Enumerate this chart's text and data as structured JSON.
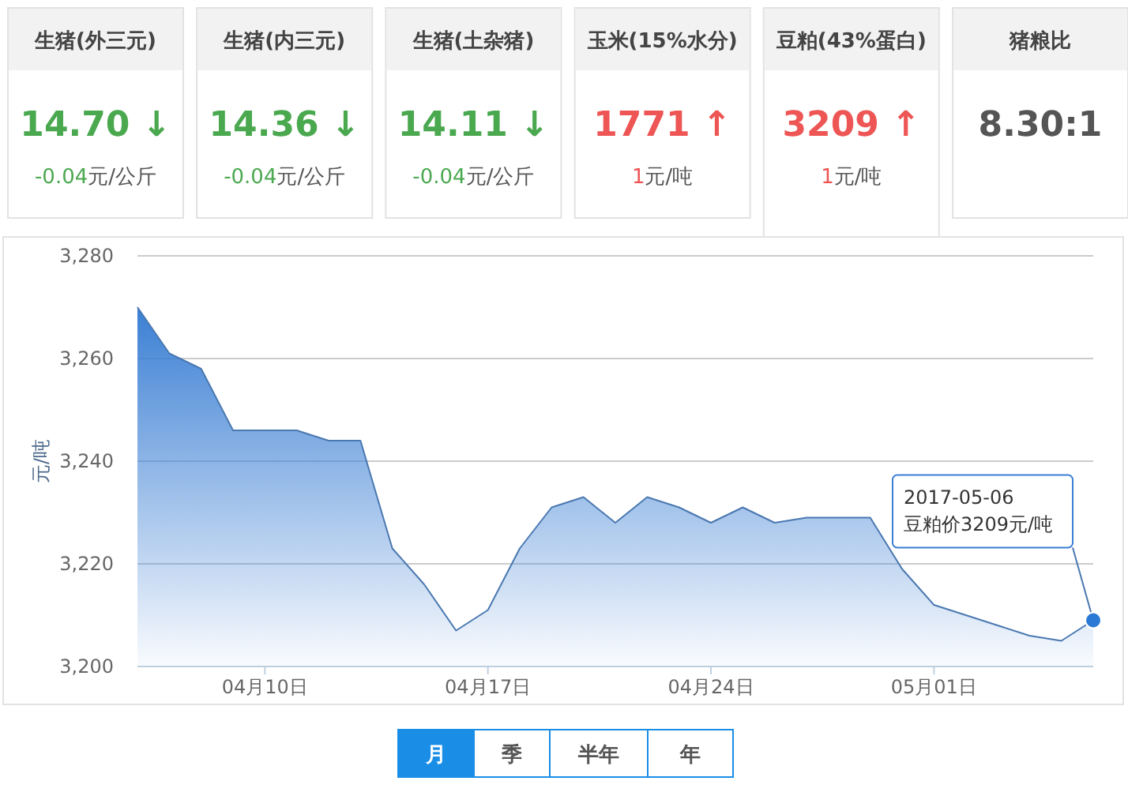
{
  "chart_data": [
    {
      "type": "other",
      "title": "生猪(外三元)",
      "annotations": [
        "14.70 ↓",
        "-0.04",
        "元/公斤"
      ],
      "colors": [
        "#4aa84f"
      ]
    },
    {
      "type": "other",
      "title": "生猪(内三元)",
      "annotations": [
        "14.36 ↓",
        "-0.04",
        "元/公斤"
      ],
      "colors": [
        "#4aa84f"
      ]
    },
    {
      "type": "other",
      "title": "生猪(土杂猪)",
      "annotations": [
        "14.11 ↓",
        "-0.04",
        "元/公斤"
      ],
      "colors": [
        "#4aa84f"
      ]
    },
    {
      "type": "other",
      "title": "玉米(15%水分)",
      "annotations": [
        "1771 ↑",
        "1",
        "元/吨"
      ],
      "colors": [
        "#ee5555"
      ]
    },
    {
      "type": "other",
      "title": "豆粕(43%蛋白)",
      "annotations": [
        "3209 ↑",
        "1",
        "元/吨"
      ],
      "colors": [
        "#ee5555"
      ]
    },
    {
      "type": "other",
      "title": "猪粮比",
      "annotations": [
        "8.30:1"
      ],
      "colors": [
        "#555555"
      ]
    },
    {
      "type": "area",
      "ylabel": "元/吨",
      "x": [
        "2017-04-06",
        "2017-04-07",
        "2017-04-08",
        "2017-04-09",
        "2017-04-10",
        "2017-04-11",
        "2017-04-12",
        "2017-04-13",
        "2017-04-14",
        "2017-04-15",
        "2017-04-16",
        "2017-04-17",
        "2017-04-18",
        "2017-04-19",
        "2017-04-20",
        "2017-04-21",
        "2017-04-22",
        "2017-04-23",
        "2017-04-24",
        "2017-04-25",
        "2017-04-26",
        "2017-04-27",
        "2017-04-28",
        "2017-04-29",
        "2017-04-30",
        "2017-05-01",
        "2017-05-02",
        "2017-05-03",
        "2017-05-04",
        "2017-05-05",
        "2017-05-06"
      ],
      "series": [
        {
          "color": "#3b7fd4",
          "values": [
            3270,
            3261,
            3258,
            3246,
            3246,
            3246,
            3244,
            3244,
            3223,
            3216,
            3207,
            3211,
            3223,
            3231,
            3233,
            3228,
            3233,
            3231,
            3228,
            3231,
            3228,
            3229,
            3229,
            3229,
            3219,
            3212,
            3210,
            3208,
            3206,
            3205,
            3209
          ]
        }
      ],
      "xlim": [
        "2017-04-06",
        "2017-05-06"
      ],
      "xticks": [
        {
          "value": "2017-04-10",
          "label": "04月10日"
        },
        {
          "value": "2017-04-17",
          "label": "04月17日"
        },
        {
          "value": "2017-04-24",
          "label": "04月24日"
        },
        {
          "value": "2017-05-01",
          "label": "05月01日"
        }
      ],
      "ylim": [
        3200,
        3280
      ],
      "yticks": [
        {
          "value": 3200,
          "label": "3,200"
        },
        {
          "value": 3220,
          "label": "3,220"
        },
        {
          "value": 3240,
          "label": "3,240"
        },
        {
          "value": 3260,
          "label": "3,260"
        },
        {
          "value": 3280,
          "label": "3,280"
        }
      ],
      "grid": "y",
      "marker": "none",
      "annotations": [
        {
          "text": "2017-05-06\n豆粕价3209元/吨",
          "x": "2017-05-06",
          "y": 3209
        },
        "月",
        "季",
        "半年",
        "年"
      ]
    }
  ]
}
